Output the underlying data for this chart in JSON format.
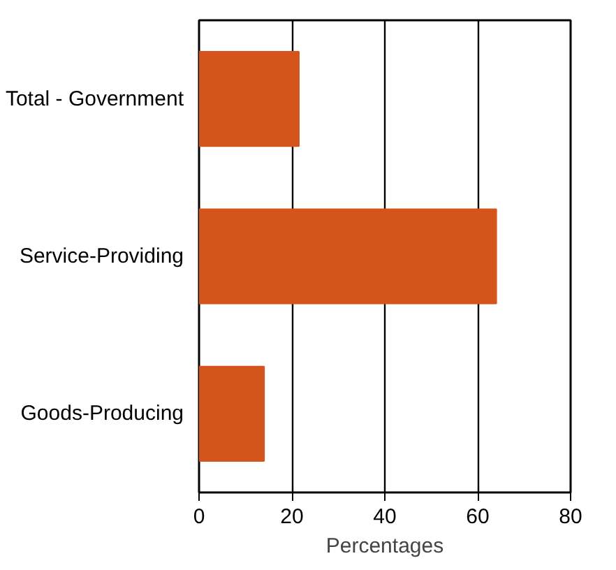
{
  "chart_data": {
    "type": "bar",
    "orientation": "horizontal",
    "xlabel": "Percentages",
    "categories": [
      "Total - Government",
      "Service-Providing",
      "Goods-Producing"
    ],
    "values": [
      21.5,
      64,
      14
    ],
    "color": "#d4541c",
    "xlim": [
      0,
      80
    ],
    "xticks": [
      0,
      20,
      40,
      60,
      80
    ],
    "grid": "x"
  }
}
